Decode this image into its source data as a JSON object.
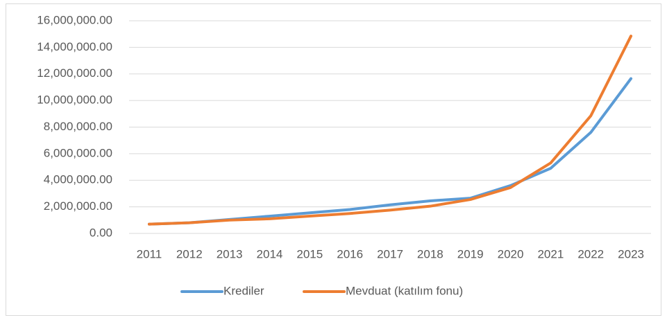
{
  "chart_data": {
    "type": "line",
    "categories": [
      "2011",
      "2012",
      "2013",
      "2014",
      "2015",
      "2016",
      "2017",
      "2018",
      "2019",
      "2020",
      "2021",
      "2022",
      "2023"
    ],
    "series": [
      {
        "name": "Krediler",
        "color": "#5b9bd5",
        "values": [
          700000,
          800000,
          1050000,
          1300000,
          1550000,
          1800000,
          2150000,
          2450000,
          2650000,
          3600000,
          4900000,
          7600000,
          11650000
        ]
      },
      {
        "name": "Mevduat (katılım fonu)",
        "color": "#ed7d31",
        "values": [
          700000,
          800000,
          1000000,
          1100000,
          1300000,
          1500000,
          1750000,
          2050000,
          2550000,
          3450000,
          5300000,
          8850000,
          14850000
        ]
      }
    ],
    "ylim": [
      0,
      16000000
    ],
    "yticks": [
      {
        "value": 0,
        "label": "0.00"
      },
      {
        "value": 2000000,
        "label": "2,000,000.00"
      },
      {
        "value": 4000000,
        "label": "4,000,000.00"
      },
      {
        "value": 6000000,
        "label": "6,000,000.00"
      },
      {
        "value": 8000000,
        "label": "8,000,000.00"
      },
      {
        "value": 10000000,
        "label": "10,000,000.00"
      },
      {
        "value": 12000000,
        "label": "12,000,000.00"
      },
      {
        "value": 14000000,
        "label": "14,000,000.00"
      },
      {
        "value": 16000000,
        "label": "16,000,000.00"
      }
    ],
    "grid": true,
    "legend": "bottom"
  }
}
